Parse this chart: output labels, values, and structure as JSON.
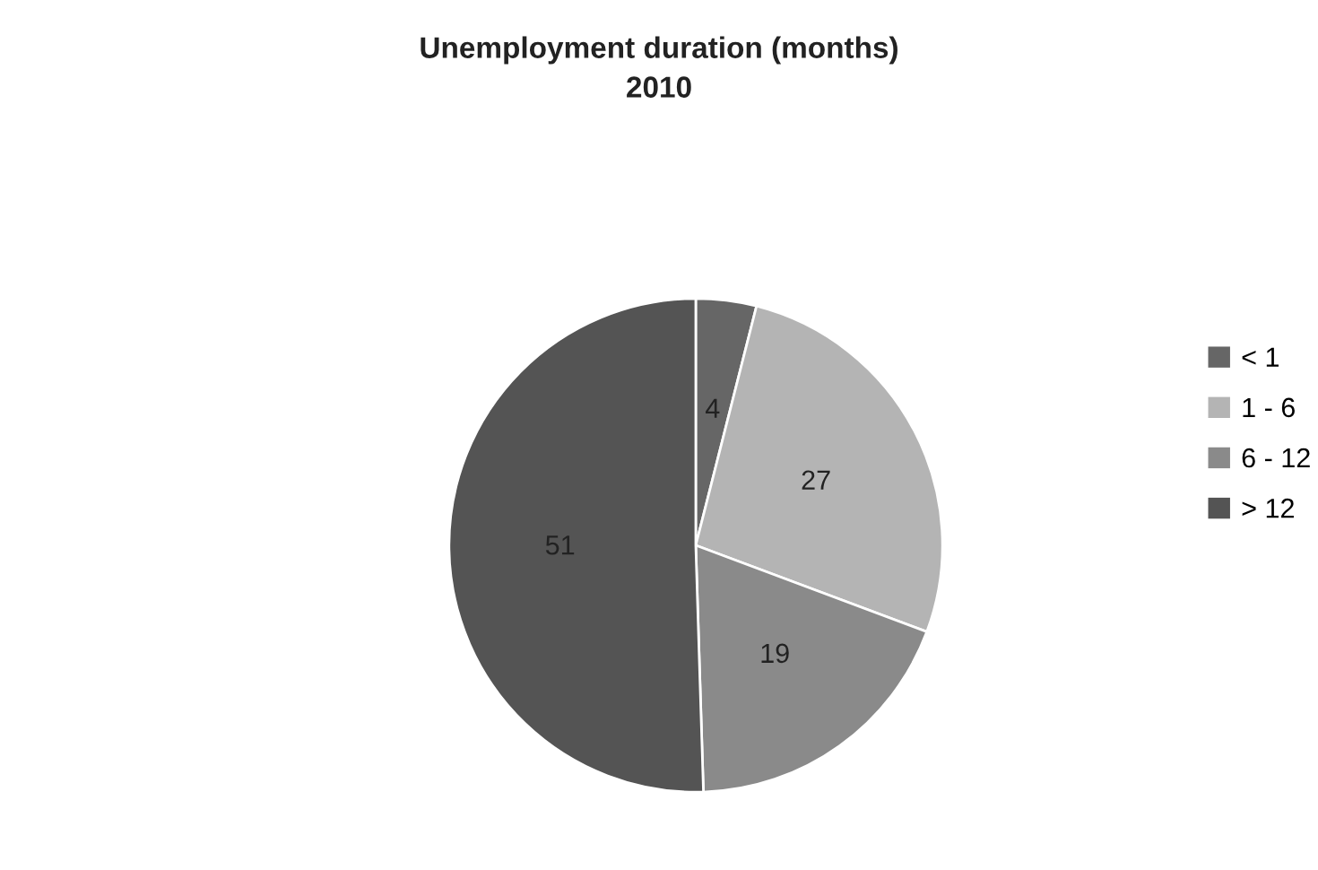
{
  "chart_data": {
    "type": "pie",
    "title": "Unemployment duration (months)",
    "subtitle": "2010",
    "categories": [
      "< 1",
      "1 - 6",
      "6 - 12",
      "> 12"
    ],
    "values": [
      4,
      27,
      19,
      51
    ],
    "colors": [
      "#666666",
      "#b4b4b4",
      "#8a8a8a",
      "#545454"
    ],
    "data_labels": true,
    "legend": "right"
  }
}
